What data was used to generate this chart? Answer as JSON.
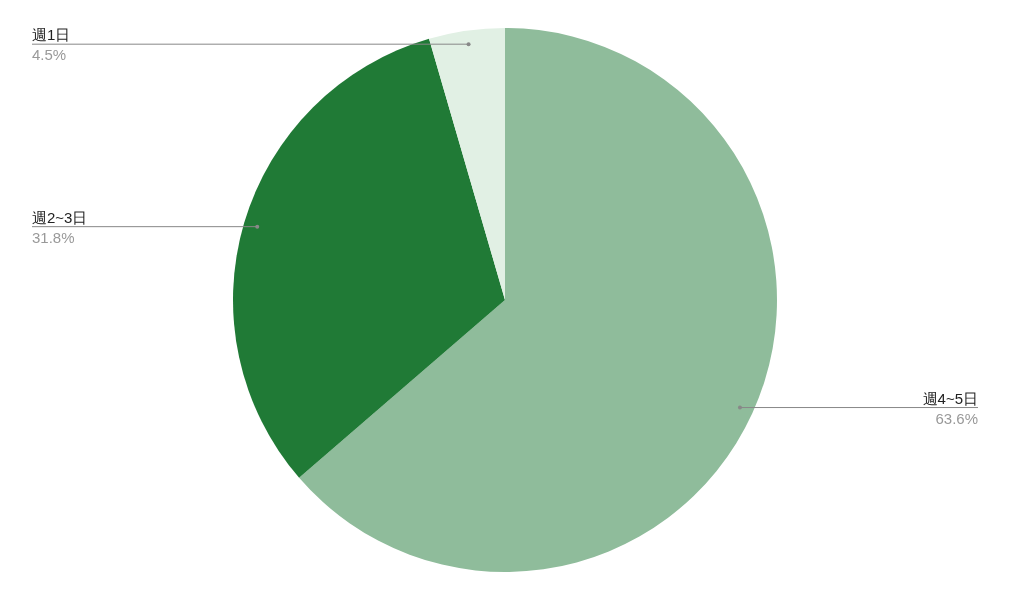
{
  "chart_data": {
    "type": "pie",
    "categories": [
      "週4~5日",
      "週2~3日",
      "週1日"
    ],
    "values": [
      63.6,
      31.8,
      4.5
    ],
    "colors": [
      "#8fbc9b",
      "#207a36",
      "#e1f0e4"
    ],
    "value_labels": [
      "63.6%",
      "31.8%",
      "4.5%"
    ]
  }
}
